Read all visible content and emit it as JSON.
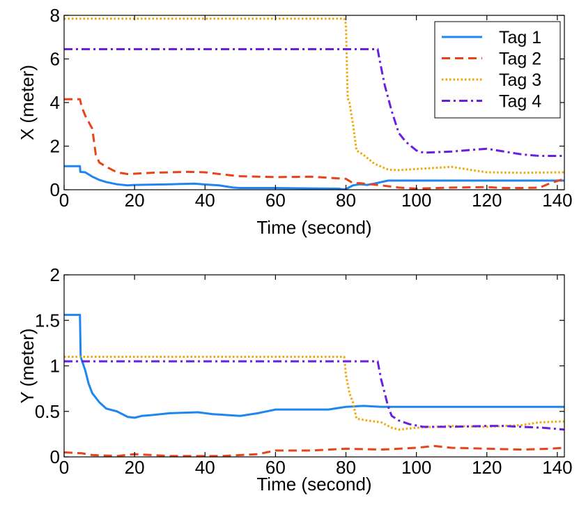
{
  "chart_data": [
    {
      "type": "line",
      "title": "",
      "xlabel": "Time (second)",
      "ylabel": "X (meter)",
      "xlim": [
        0,
        142
      ],
      "ylim": [
        0,
        8
      ],
      "xticks": [
        0,
        20,
        40,
        60,
        80,
        100,
        120,
        140
      ],
      "xtick_labels": [
        "0",
        "20",
        "40",
        "60",
        "80",
        "100",
        "120",
        "140"
      ],
      "yticks": [
        0,
        2,
        4,
        6,
        8
      ],
      "ytick_labels": [
        "0",
        "2",
        "4",
        "6",
        "8"
      ],
      "grid": false,
      "legend": {
        "position": "top-right",
        "entries": [
          "Tag 1",
          "Tag 2",
          "Tag 3",
          "Tag 4"
        ]
      },
      "series": [
        {
          "name": "Tag 1",
          "color": "#1f86f0",
          "dash": "solid",
          "points": [
            [
              0,
              1.08
            ],
            [
              4.5,
              1.08
            ],
            [
              4.6,
              0.82
            ],
            [
              6,
              0.8
            ],
            [
              8,
              0.6
            ],
            [
              10,
              0.45
            ],
            [
              12,
              0.35
            ],
            [
              15,
              0.25
            ],
            [
              18,
              0.2
            ],
            [
              20,
              0.22
            ],
            [
              30,
              0.25
            ],
            [
              37,
              0.28
            ],
            [
              40,
              0.24
            ],
            [
              44,
              0.2
            ],
            [
              48,
              0.1
            ],
            [
              50,
              0.08
            ],
            [
              60,
              0.08
            ],
            [
              70,
              0.06
            ],
            [
              78,
              0.05
            ],
            [
              79,
              0.02
            ],
            [
              80,
              0.03
            ],
            [
              82,
              0.2
            ],
            [
              84,
              0.25
            ],
            [
              86,
              0.22
            ],
            [
              88,
              0.28
            ],
            [
              90,
              0.35
            ],
            [
              92,
              0.42
            ],
            [
              100,
              0.42
            ],
            [
              120,
              0.42
            ],
            [
              142,
              0.42
            ]
          ]
        },
        {
          "name": "Tag 2",
          "color": "#e8431a",
          "dash": "dashed",
          "points": [
            [
              0,
              4.15
            ],
            [
              4.5,
              4.15
            ],
            [
              5,
              3.8
            ],
            [
              6,
              3.4
            ],
            [
              7,
              3.1
            ],
            [
              8,
              2.8
            ],
            [
              8.5,
              2.2
            ],
            [
              9,
              1.6
            ],
            [
              10,
              1.25
            ],
            [
              12,
              1.05
            ],
            [
              15,
              0.8
            ],
            [
              18,
              0.72
            ],
            [
              25,
              0.78
            ],
            [
              35,
              0.82
            ],
            [
              40,
              0.8
            ],
            [
              45,
              0.7
            ],
            [
              50,
              0.62
            ],
            [
              55,
              0.6
            ],
            [
              60,
              0.58
            ],
            [
              70,
              0.6
            ],
            [
              75,
              0.55
            ],
            [
              80,
              0.5
            ],
            [
              82,
              0.3
            ],
            [
              84,
              0.3
            ],
            [
              90,
              0.2
            ],
            [
              95,
              0.1
            ],
            [
              100,
              0.05
            ],
            [
              110,
              0.1
            ],
            [
              120,
              0.12
            ],
            [
              125,
              0.08
            ],
            [
              130,
              0.08
            ],
            [
              135,
              0.1
            ],
            [
              138,
              0.3
            ],
            [
              142,
              0.5
            ]
          ]
        },
        {
          "name": "Tag 3",
          "color": "#f0a500",
          "dash": "dotted",
          "points": [
            [
              0,
              7.85
            ],
            [
              79.5,
              7.85
            ],
            [
              80,
              7.6
            ],
            [
              80.5,
              4.2
            ],
            [
              81,
              4.0
            ],
            [
              82,
              3.0
            ],
            [
              83,
              1.8
            ],
            [
              85,
              1.6
            ],
            [
              88,
              1.2
            ],
            [
              92,
              0.92
            ],
            [
              95,
              0.9
            ],
            [
              100,
              0.95
            ],
            [
              110,
              1.05
            ],
            [
              115,
              0.92
            ],
            [
              120,
              0.8
            ],
            [
              130,
              0.78
            ],
            [
              142,
              0.8
            ]
          ]
        },
        {
          "name": "Tag 4",
          "color": "#6a1fe0",
          "dash": "dashdot",
          "points": [
            [
              0,
              6.45
            ],
            [
              89,
              6.45
            ],
            [
              89.5,
              6.0
            ],
            [
              90,
              5.6
            ],
            [
              91,
              4.8
            ],
            [
              93,
              3.6
            ],
            [
              95,
              2.6
            ],
            [
              97,
              2.2
            ],
            [
              100,
              1.8
            ],
            [
              102,
              1.7
            ],
            [
              110,
              1.75
            ],
            [
              115,
              1.82
            ],
            [
              120,
              1.88
            ],
            [
              125,
              1.75
            ],
            [
              130,
              1.62
            ],
            [
              135,
              1.55
            ],
            [
              142,
              1.55
            ]
          ]
        }
      ]
    },
    {
      "type": "line",
      "title": "",
      "xlabel": "Time (second)",
      "ylabel": "Y (meter)",
      "xlim": [
        0,
        142
      ],
      "ylim": [
        0,
        2
      ],
      "xticks": [
        0,
        20,
        40,
        60,
        80,
        100,
        120,
        140
      ],
      "xtick_labels": [
        "0",
        "20",
        "40",
        "60",
        "80",
        "100",
        "120",
        "140"
      ],
      "yticks": [
        0,
        0.5,
        1,
        1.5,
        2
      ],
      "ytick_labels": [
        "0",
        "0.5",
        "1",
        "1.5",
        "2"
      ],
      "grid": false,
      "series": [
        {
          "name": "Tag 1",
          "color": "#1f86f0",
          "dash": "solid",
          "points": [
            [
              0,
              1.56
            ],
            [
              4.5,
              1.56
            ],
            [
              4.7,
              1.1
            ],
            [
              6,
              0.95
            ],
            [
              7,
              0.8
            ],
            [
              8,
              0.7
            ],
            [
              10,
              0.6
            ],
            [
              12,
              0.53
            ],
            [
              15,
              0.5
            ],
            [
              18,
              0.44
            ],
            [
              20,
              0.43
            ],
            [
              22,
              0.45
            ],
            [
              25,
              0.46
            ],
            [
              30,
              0.48
            ],
            [
              38,
              0.49
            ],
            [
              42,
              0.47
            ],
            [
              50,
              0.45
            ],
            [
              55,
              0.48
            ],
            [
              60,
              0.52
            ],
            [
              70,
              0.52
            ],
            [
              75,
              0.52
            ],
            [
              80,
              0.55
            ],
            [
              85,
              0.56
            ],
            [
              90,
              0.55
            ],
            [
              100,
              0.55
            ],
            [
              120,
              0.55
            ],
            [
              142,
              0.55
            ]
          ]
        },
        {
          "name": "Tag 2",
          "color": "#e8431a",
          "dash": "dashed",
          "points": [
            [
              0,
              0.05
            ],
            [
              5,
              0.04
            ],
            [
              8,
              0.02
            ],
            [
              15,
              0.01
            ],
            [
              20,
              0.03
            ],
            [
              30,
              0.01
            ],
            [
              45,
              0.01
            ],
            [
              55,
              0.03
            ],
            [
              60,
              0.07
            ],
            [
              70,
              0.07
            ],
            [
              80,
              0.09
            ],
            [
              90,
              0.08
            ],
            [
              100,
              0.1
            ],
            [
              105,
              0.12
            ],
            [
              110,
              0.1
            ],
            [
              120,
              0.09
            ],
            [
              130,
              0.08
            ],
            [
              138,
              0.09
            ],
            [
              142,
              0.1
            ]
          ]
        },
        {
          "name": "Tag 3",
          "color": "#f0a500",
          "dash": "dotted",
          "points": [
            [
              0,
              1.1
            ],
            [
              79.5,
              1.1
            ],
            [
              80,
              0.9
            ],
            [
              81,
              0.7
            ],
            [
              82,
              0.6
            ],
            [
              83,
              0.42
            ],
            [
              86,
              0.4
            ],
            [
              90,
              0.38
            ],
            [
              93,
              0.32
            ],
            [
              95,
              0.3
            ],
            [
              100,
              0.32
            ],
            [
              110,
              0.34
            ],
            [
              120,
              0.33
            ],
            [
              130,
              0.35
            ],
            [
              135,
              0.38
            ],
            [
              142,
              0.39
            ]
          ]
        },
        {
          "name": "Tag 4",
          "color": "#6a1fe0",
          "dash": "dashdot",
          "points": [
            [
              0,
              1.05
            ],
            [
              89,
              1.05
            ],
            [
              90,
              0.85
            ],
            [
              91,
              0.7
            ],
            [
              92,
              0.55
            ],
            [
              93,
              0.45
            ],
            [
              95,
              0.4
            ],
            [
              98,
              0.36
            ],
            [
              102,
              0.33
            ],
            [
              110,
              0.33
            ],
            [
              120,
              0.34
            ],
            [
              125,
              0.34
            ],
            [
              130,
              0.33
            ],
            [
              136,
              0.32
            ],
            [
              142,
              0.3
            ]
          ]
        }
      ]
    }
  ]
}
